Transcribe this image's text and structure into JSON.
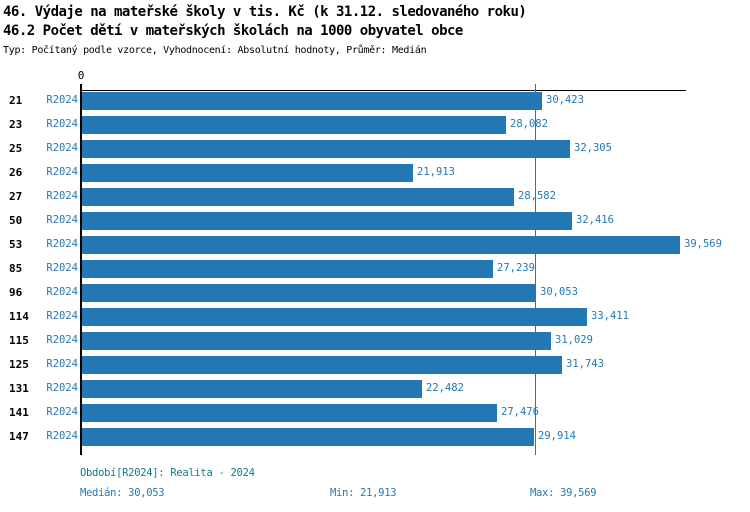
{
  "header": {
    "title_line1": "46. Výdaje na mateřské školy v tis. Kč (k 31.12. sledovaného roku)",
    "title_line2": "46.2 Počet dětí v mateřských školách na 1000 obyvatel obce",
    "subtitle": "Typ: Počítaný podle vzorce, Vyhodnocení: Absolutní hodnoty, Průměr: Medián"
  },
  "chart_data": {
    "type": "bar",
    "orientation": "horizontal",
    "categories": [
      "21",
      "23",
      "25",
      "26",
      "27",
      "50",
      "53",
      "85",
      "96",
      "114",
      "115",
      "125",
      "131",
      "141",
      "147"
    ],
    "series": [
      {
        "name": "R2024",
        "values": [
          30423,
          28082,
          32305,
          21913,
          28582,
          32416,
          39569,
          27239,
          30053,
          33411,
          31029,
          31743,
          22482,
          27476,
          29914
        ],
        "value_labels": [
          "30,423",
          "28,082",
          "32,305",
          "21,913",
          "28,582",
          "32,416",
          "39,569",
          "27,239",
          "30,053",
          "33,411",
          "31,029",
          "31,743",
          "22,482",
          "27,476",
          "29,914"
        ]
      }
    ],
    "axis": {
      "zero_tick_label": "0"
    },
    "median_value": 30053,
    "min_value": 21913,
    "max_value": 39569,
    "xlim": [
      0,
      44000
    ],
    "legend_position": "none",
    "grid": false,
    "colors": {
      "bar": "#2478b4",
      "median_line": "#2478b4",
      "series_label": "#2478b4",
      "value_label": "#2478b4",
      "category_label": "#000000",
      "period_text": "#0c7f87",
      "stats_text": "#2478b4"
    }
  },
  "footer": {
    "period": "Období[R2024]: Realita - 2024",
    "median": "Medián: 30,053",
    "min": "Min: 21,913",
    "max": "Max: 39,569"
  }
}
